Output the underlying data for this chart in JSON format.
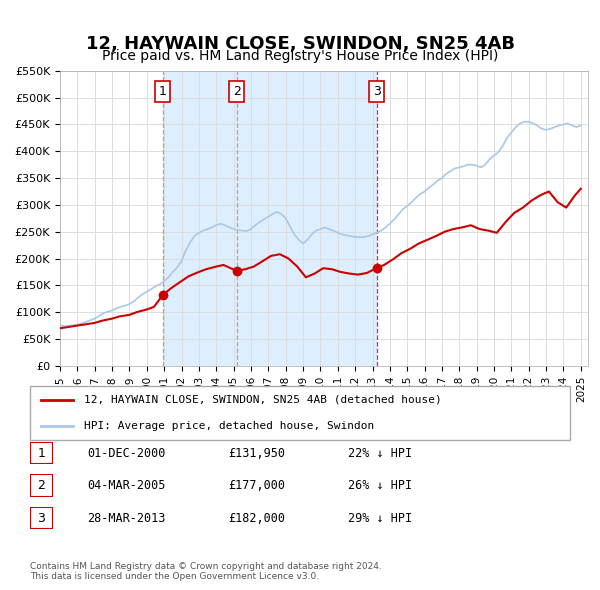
{
  "title": "12, HAYWAIN CLOSE, SWINDON, SN25 4AB",
  "subtitle": "Price paid vs. HM Land Registry's House Price Index (HPI)",
  "title_fontsize": 13,
  "subtitle_fontsize": 10,
  "hpi_color": "#a8c8e8",
  "price_color": "#cc0000",
  "background_color": "#ffffff",
  "plot_bg_color": "#ffffff",
  "grid_color": "#dddddd",
  "ylim": [
    0,
    550000
  ],
  "yticks": [
    0,
    50000,
    100000,
    150000,
    200000,
    250000,
    300000,
    350000,
    400000,
    450000,
    500000,
    550000
  ],
  "ytick_labels": [
    "£0",
    "£50K",
    "£100K",
    "£150K",
    "£200K",
    "£250K",
    "£300K",
    "£350K",
    "£400K",
    "£450K",
    "£500K",
    "£550K"
  ],
  "xmin": "1995-01-01",
  "xmax": "2025-06-01",
  "sale_dates": [
    "2000-12-01",
    "2005-03-04",
    "2013-03-28"
  ],
  "sale_prices": [
    131950,
    177000,
    182000
  ],
  "sale_labels": [
    "1",
    "2",
    "3"
  ],
  "vline_colors": [
    "#888888",
    "#888888",
    "#cc0000"
  ],
  "vline_styles": [
    "--",
    "--",
    "--"
  ],
  "highlight_rect_color": "#ddeeff",
  "legend_entries": [
    "12, HAYWAIN CLOSE, SWINDON, SN25 4AB (detached house)",
    "HPI: Average price, detached house, Swindon"
  ],
  "table_rows": [
    {
      "num": "1",
      "date": "01-DEC-2000",
      "price": "£131,950",
      "discount": "22% ↓ HPI"
    },
    {
      "num": "2",
      "date": "04-MAR-2005",
      "price": "£177,000",
      "discount": "26% ↓ HPI"
    },
    {
      "num": "3",
      "date": "28-MAR-2013",
      "price": "£182,000",
      "discount": "29% ↓ HPI"
    }
  ],
  "footnote": "Contains HM Land Registry data © Crown copyright and database right 2024.\nThis data is licensed under the Open Government Licence v3.0.",
  "hpi_data": {
    "dates": [
      "1995-01-01",
      "1995-04-01",
      "1995-07-01",
      "1995-10-01",
      "1996-01-01",
      "1996-04-01",
      "1996-07-01",
      "1996-10-01",
      "1997-01-01",
      "1997-04-01",
      "1997-07-01",
      "1997-10-01",
      "1998-01-01",
      "1998-04-01",
      "1998-07-01",
      "1998-10-01",
      "1999-01-01",
      "1999-04-01",
      "1999-07-01",
      "1999-10-01",
      "2000-01-01",
      "2000-04-01",
      "2000-07-01",
      "2000-10-01",
      "2001-01-01",
      "2001-04-01",
      "2001-07-01",
      "2001-10-01",
      "2002-01-01",
      "2002-04-01",
      "2002-07-01",
      "2002-10-01",
      "2003-01-01",
      "2003-04-01",
      "2003-07-01",
      "2003-10-01",
      "2004-01-01",
      "2004-04-01",
      "2004-07-01",
      "2004-10-01",
      "2005-01-01",
      "2005-04-01",
      "2005-07-01",
      "2005-10-01",
      "2006-01-01",
      "2006-04-01",
      "2006-07-01",
      "2006-10-01",
      "2007-01-01",
      "2007-04-01",
      "2007-07-01",
      "2007-10-01",
      "2008-01-01",
      "2008-04-01",
      "2008-07-01",
      "2008-10-01",
      "2009-01-01",
      "2009-04-01",
      "2009-07-01",
      "2009-10-01",
      "2010-01-01",
      "2010-04-01",
      "2010-07-01",
      "2010-10-01",
      "2011-01-01",
      "2011-04-01",
      "2011-07-01",
      "2011-10-01",
      "2012-01-01",
      "2012-04-01",
      "2012-07-01",
      "2012-10-01",
      "2013-01-01",
      "2013-04-01",
      "2013-07-01",
      "2013-10-01",
      "2014-01-01",
      "2014-04-01",
      "2014-07-01",
      "2014-10-01",
      "2015-01-01",
      "2015-04-01",
      "2015-07-01",
      "2015-10-01",
      "2016-01-01",
      "2016-04-01",
      "2016-07-01",
      "2016-10-01",
      "2017-01-01",
      "2017-04-01",
      "2017-07-01",
      "2017-10-01",
      "2018-01-01",
      "2018-04-01",
      "2018-07-01",
      "2018-10-01",
      "2019-01-01",
      "2019-04-01",
      "2019-07-01",
      "2019-10-01",
      "2020-01-01",
      "2020-04-01",
      "2020-07-01",
      "2020-10-01",
      "2021-01-01",
      "2021-04-01",
      "2021-07-01",
      "2021-10-01",
      "2022-01-01",
      "2022-04-01",
      "2022-07-01",
      "2022-10-01",
      "2023-01-01",
      "2023-04-01",
      "2023-07-01",
      "2023-10-01",
      "2024-01-01",
      "2024-04-01",
      "2024-07-01",
      "2024-10-01",
      "2025-01-01"
    ],
    "values": [
      75000,
      74000,
      74500,
      75500,
      77000,
      79000,
      82000,
      85000,
      88000,
      93000,
      98000,
      101000,
      103000,
      107000,
      110000,
      112000,
      115000,
      120000,
      127000,
      133000,
      138000,
      143000,
      148000,
      152000,
      158000,
      165000,
      175000,
      183000,
      195000,
      215000,
      230000,
      242000,
      248000,
      252000,
      255000,
      258000,
      262000,
      265000,
      262000,
      258000,
      255000,
      253000,
      252000,
      251000,
      255000,
      262000,
      268000,
      273000,
      278000,
      283000,
      287000,
      283000,
      275000,
      260000,
      245000,
      235000,
      228000,
      235000,
      245000,
      252000,
      255000,
      258000,
      255000,
      252000,
      248000,
      245000,
      243000,
      242000,
      240000,
      240000,
      240000,
      242000,
      245000,
      248000,
      252000,
      258000,
      265000,
      273000,
      282000,
      292000,
      298000,
      305000,
      313000,
      320000,
      325000,
      332000,
      338000,
      345000,
      350000,
      358000,
      363000,
      368000,
      370000,
      372000,
      375000,
      375000,
      373000,
      370000,
      375000,
      385000,
      392000,
      398000,
      410000,
      425000,
      435000,
      445000,
      452000,
      455000,
      455000,
      452000,
      448000,
      442000,
      440000,
      442000,
      445000,
      448000,
      450000,
      452000,
      448000,
      445000,
      448000
    ]
  },
  "price_history": {
    "dates": [
      "1995-01-01",
      "1995-06-01",
      "1996-01-01",
      "1996-06-01",
      "1997-01-01",
      "1997-06-01",
      "1998-01-01",
      "1998-06-01",
      "1999-01-01",
      "1999-06-01",
      "2000-01-01",
      "2000-06-01",
      "2000-12-01",
      "2001-06-01",
      "2002-01-01",
      "2002-06-01",
      "2003-01-01",
      "2003-06-01",
      "2004-01-01",
      "2004-06-01",
      "2005-03-04",
      "2005-09-01",
      "2006-03-01",
      "2006-09-01",
      "2007-03-01",
      "2007-09-01",
      "2008-03-01",
      "2008-09-01",
      "2009-03-01",
      "2009-09-01",
      "2010-03-01",
      "2010-09-01",
      "2011-03-01",
      "2011-09-01",
      "2012-03-01",
      "2012-09-01",
      "2013-03-28",
      "2013-09-01",
      "2014-03-01",
      "2014-09-01",
      "2015-03-01",
      "2015-09-01",
      "2016-03-01",
      "2016-09-01",
      "2017-03-01",
      "2017-09-01",
      "2018-03-01",
      "2018-09-01",
      "2019-03-01",
      "2019-09-01",
      "2020-03-01",
      "2020-09-01",
      "2021-03-01",
      "2021-09-01",
      "2022-03-01",
      "2022-09-01",
      "2023-03-01",
      "2023-09-01",
      "2024-03-01",
      "2024-09-01",
      "2025-01-01"
    ],
    "values": [
      70000,
      72000,
      75000,
      77000,
      80000,
      84000,
      88000,
      92000,
      95000,
      100000,
      105000,
      110000,
      131950,
      145000,
      158000,
      167000,
      175000,
      180000,
      185000,
      188000,
      177000,
      180000,
      185000,
      195000,
      205000,
      208000,
      200000,
      185000,
      165000,
      172000,
      182000,
      180000,
      175000,
      172000,
      170000,
      173000,
      182000,
      188000,
      198000,
      210000,
      218000,
      228000,
      235000,
      242000,
      250000,
      255000,
      258000,
      262000,
      255000,
      252000,
      248000,
      268000,
      285000,
      295000,
      308000,
      318000,
      325000,
      305000,
      295000,
      318000,
      330000
    ]
  }
}
